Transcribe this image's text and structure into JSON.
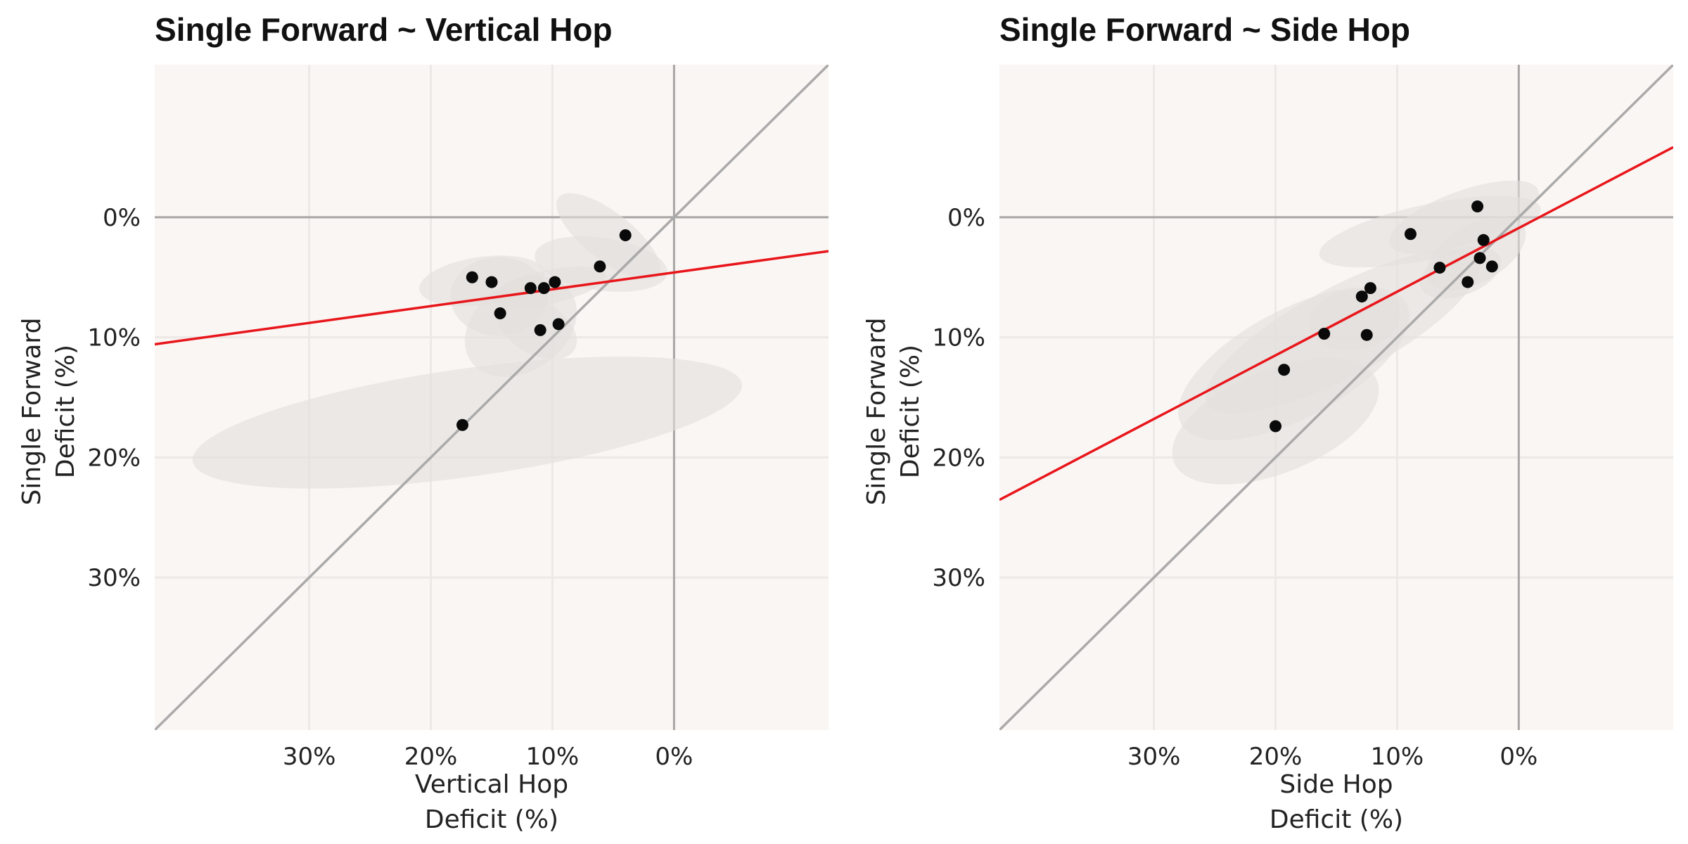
{
  "colors": {
    "panel_bg": "#faf6f4",
    "grid": "#ece9e7",
    "zero_line": "#a8a6a5",
    "identity_line": "#aaaaaa",
    "ellipse": "#e3dfdc",
    "point": "#0a0a0a",
    "fit_line": "#e8161b"
  },
  "chart_data": [
    {
      "type": "scatter",
      "title": "Single Forward ~ Vertical Hop",
      "xlabel": [
        "Vertical Hop",
        "Deficit (%)"
      ],
      "ylabel": [
        "Single Forward",
        "Deficit (%)"
      ],
      "xlim": [
        42.7,
        -12.7
      ],
      "ylim": [
        42.7,
        -12.7
      ],
      "x_reversed": true,
      "y_reversed": true,
      "xticks": [
        30,
        20,
        10,
        0
      ],
      "xtick_labels": [
        "30%",
        "20%",
        "10%",
        "0%"
      ],
      "yticks": [
        0,
        10,
        20,
        30
      ],
      "ytick_labels": [
        "0%",
        "10%",
        "20%",
        "30%"
      ],
      "grid": true,
      "points": [
        {
          "x": 4.0,
          "y": 1.5
        },
        {
          "x": 6.1,
          "y": 4.1
        },
        {
          "x": 16.6,
          "y": 5.0
        },
        {
          "x": 15.0,
          "y": 5.4
        },
        {
          "x": 11.8,
          "y": 5.9
        },
        {
          "x": 10.7,
          "y": 5.9
        },
        {
          "x": 9.8,
          "y": 5.4
        },
        {
          "x": 14.3,
          "y": 8.0
        },
        {
          "x": 9.5,
          "y": 8.9
        },
        {
          "x": 11.0,
          "y": 9.4
        },
        {
          "x": 17.4,
          "y": 17.3
        }
      ],
      "ellipses": [
        {
          "cx": 5.4,
          "cy": 1.6,
          "rx": 5.2,
          "ry": 2.0,
          "angle": 38
        },
        {
          "cx": 6.0,
          "cy": 3.9,
          "rx": 5.5,
          "ry": 2.2,
          "angle": 8
        },
        {
          "cx": 15.8,
          "cy": 5.3,
          "rx": 5.2,
          "ry": 2.0,
          "angle": -8
        },
        {
          "cx": 14.4,
          "cy": 6.6,
          "rx": 4.0,
          "ry": 3.3,
          "angle": 0
        },
        {
          "cx": 12.6,
          "cy": 9.1,
          "rx": 5.0,
          "ry": 3.7,
          "angle": -35
        },
        {
          "cx": 10.3,
          "cy": 5.8,
          "rx": 4.8,
          "ry": 1.4,
          "angle": -12
        },
        {
          "cx": 11.3,
          "cy": 9.2,
          "rx": 3.6,
          "ry": 2.2,
          "angle": 30
        },
        {
          "cx": 17.0,
          "cy": 17.1,
          "rx": 22.8,
          "ry": 4.5,
          "angle": -8
        }
      ],
      "fit_line": {
        "intercept": 4.6,
        "slope": 0.14
      }
    },
    {
      "type": "scatter",
      "title": "Single Forward ~ Side Hop",
      "xlabel": [
        "Side Hop",
        "Deficit (%)"
      ],
      "ylabel": [
        "Single Forward",
        "Deficit (%)"
      ],
      "xlim": [
        42.7,
        -12.7
      ],
      "ylim": [
        42.7,
        -12.7
      ],
      "x_reversed": true,
      "y_reversed": true,
      "xticks": [
        30,
        20,
        10,
        0
      ],
      "xtick_labels": [
        "30%",
        "20%",
        "10%",
        "0%"
      ],
      "yticks": [
        0,
        10,
        20,
        30
      ],
      "ytick_labels": [
        "0%",
        "10%",
        "20%",
        "30%"
      ],
      "grid": true,
      "points": [
        {
          "x": 3.4,
          "y": -0.9
        },
        {
          "x": 8.9,
          "y": 1.4
        },
        {
          "x": 2.9,
          "y": 1.9
        },
        {
          "x": 3.2,
          "y": 3.4
        },
        {
          "x": 2.2,
          "y": 4.1
        },
        {
          "x": 6.5,
          "y": 4.2
        },
        {
          "x": 4.2,
          "y": 5.4
        },
        {
          "x": 12.2,
          "y": 5.9
        },
        {
          "x": 12.9,
          "y": 6.6
        },
        {
          "x": 16.0,
          "y": 9.7
        },
        {
          "x": 12.5,
          "y": 9.8
        },
        {
          "x": 19.3,
          "y": 12.7
        },
        {
          "x": 20.0,
          "y": 17.4
        }
      ],
      "ellipses": [
        {
          "cx": 4.5,
          "cy": 0.0,
          "rx": 6.5,
          "ry": 2.2,
          "angle": -20
        },
        {
          "cx": 7.3,
          "cy": 1.2,
          "rx": 9.3,
          "ry": 2.3,
          "angle": -12
        },
        {
          "cx": 3.5,
          "cy": 3.0,
          "rx": 4.5,
          "ry": 2.4,
          "angle": -30
        },
        {
          "cx": 4.8,
          "cy": 4.6,
          "rx": 3.5,
          "ry": 1.9,
          "angle": -20
        },
        {
          "cx": 14.5,
          "cy": 9.5,
          "rx": 12.6,
          "ry": 3.7,
          "angle": -28
        },
        {
          "cx": 13.5,
          "cy": 8.5,
          "rx": 3.8,
          "ry": 2.5,
          "angle": -10
        },
        {
          "cx": 18.5,
          "cy": 12.2,
          "rx": 10.5,
          "ry": 4.5,
          "angle": -28
        },
        {
          "cx": 20.0,
          "cy": 17.0,
          "rx": 9.0,
          "ry": 4.3,
          "angle": -22
        }
      ],
      "fit_line": {
        "intercept": 0.9,
        "slope": 0.53
      }
    }
  ]
}
